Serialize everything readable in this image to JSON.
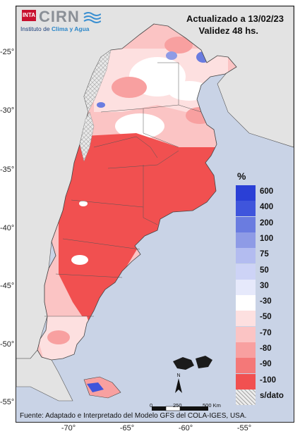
{
  "header": {
    "updated": "Actualizado a 13/02/23",
    "validity": "Validez 48 hs."
  },
  "logo": {
    "badge": "INTA",
    "name": "CIRN",
    "institute_prefix": "Instituto de ",
    "institute_highlight": "Clima y Agua"
  },
  "axes": {
    "lat_ticks": [
      "-25°",
      "-30°",
      "-35°",
      "-40°",
      "-45°",
      "-50°",
      "-55°"
    ],
    "lon_ticks": [
      "-70°",
      "-65°",
      "-60°",
      "-55°"
    ]
  },
  "legend": {
    "title": "%",
    "items": [
      {
        "label": "600",
        "color": "#2a3fd6"
      },
      {
        "label": "400",
        "color": "#3f55dc"
      },
      {
        "label": "200",
        "color": "#6a7ce0"
      },
      {
        "label": "100",
        "color": "#8e9be6"
      },
      {
        "label": "75",
        "color": "#b3bcf0"
      },
      {
        "label": "50",
        "color": "#cdd3f6"
      },
      {
        "label": "30",
        "color": "#e6e9fb"
      },
      {
        "label": "-30",
        "color": "#ffffff"
      },
      {
        "label": "-50",
        "color": "#fde0e0"
      },
      {
        "label": "-70",
        "color": "#fbc4c4"
      },
      {
        "label": "-80",
        "color": "#f8a0a0"
      },
      {
        "label": "-90",
        "color": "#f47878"
      },
      {
        "label": "-100",
        "color": "#f15050"
      },
      {
        "label": "s/dato",
        "color": "#dddddd"
      }
    ]
  },
  "scale": {
    "start": "0",
    "mid": "250",
    "end": "500 Km"
  },
  "north_label": "N",
  "source": "Fuente: Adaptado e Interpretado del Modelo GFS del COLA-IGES, USA.",
  "colors": {
    "ocean": "#c9d3e6",
    "neighbor_land": "#e3e3e3",
    "deficit_strong": "#f15050",
    "deficit_medium": "#f8a0a0",
    "deficit_light": "#fde0e0",
    "excess_light": "#cdd3f6",
    "excess_strong": "#3f55dc"
  }
}
